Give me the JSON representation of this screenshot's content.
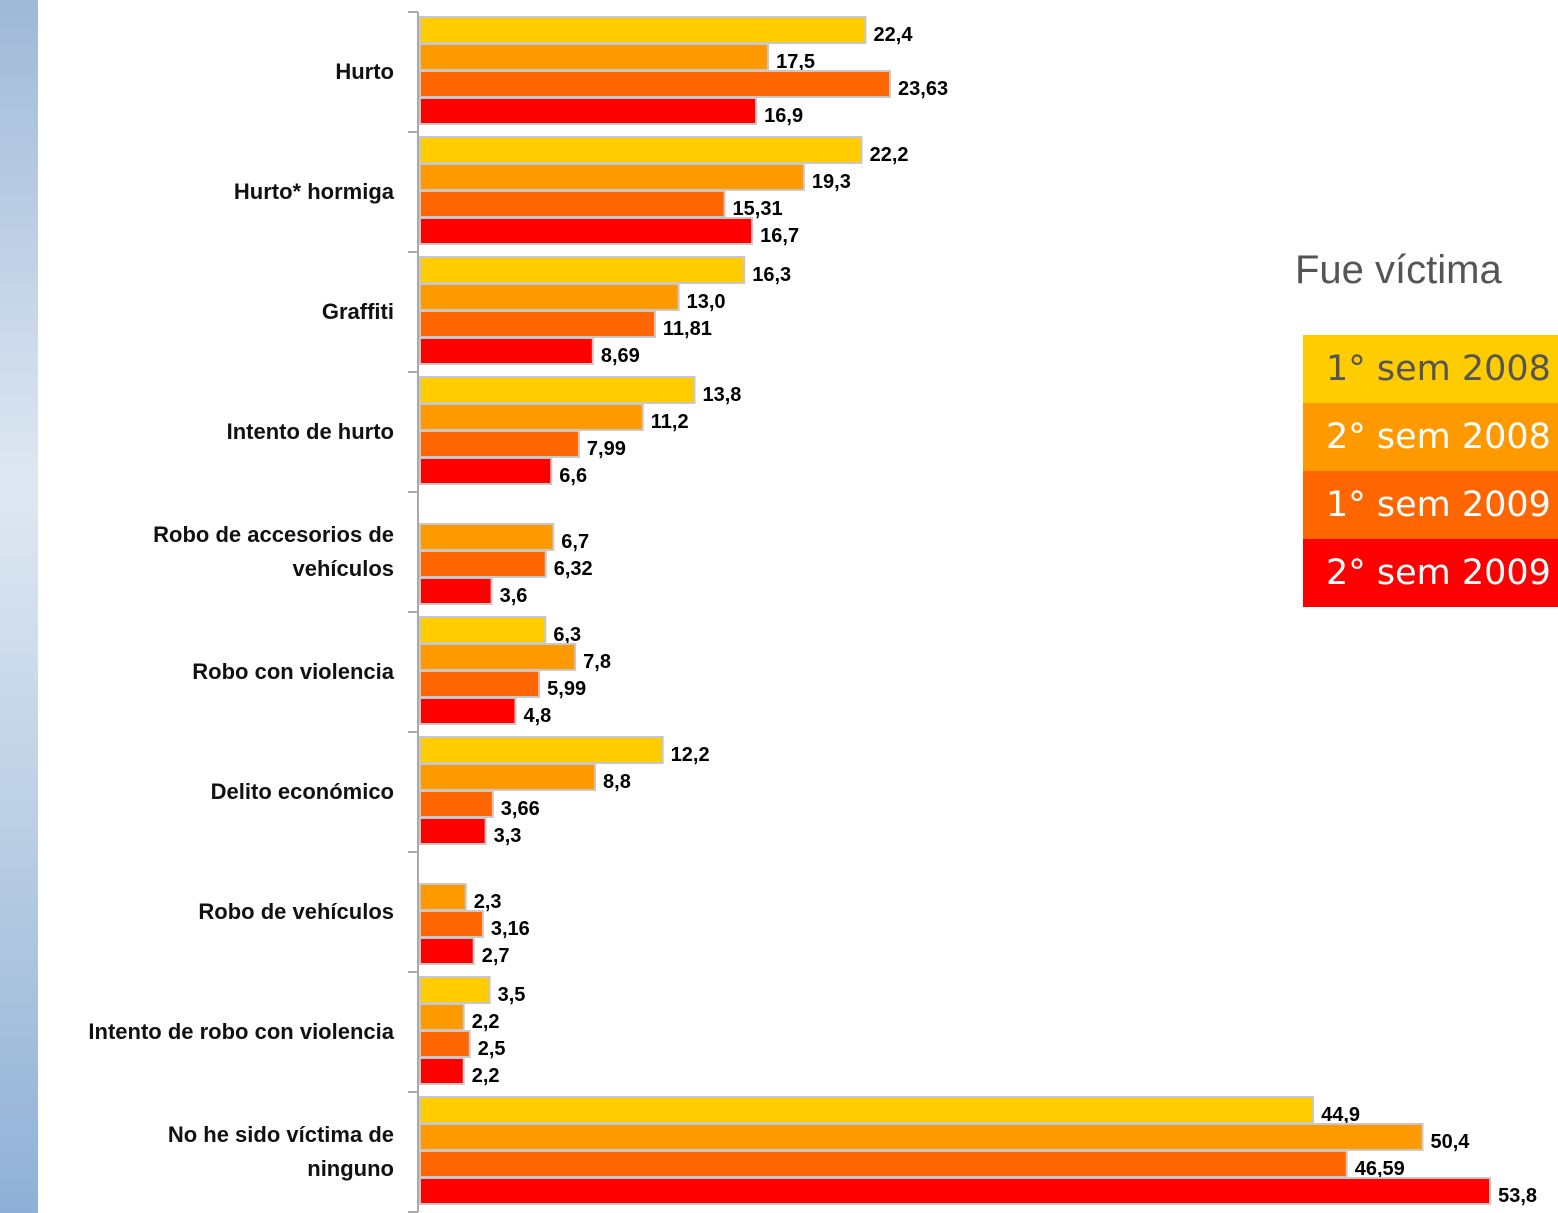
{
  "chart_data": {
    "type": "bar",
    "orientation": "horizontal",
    "categories": [
      "Hurto",
      "Hurto* hormiga",
      "Graffiti",
      "Intento de hurto",
      "Robo de accesorios de\nvehículos",
      "Robo con violencia",
      "Delito económico",
      "Robo de  vehículos",
      "Intento de robo con violencia",
      "No he sido víctima de\nninguno"
    ],
    "series": [
      {
        "name": "1° sem 2008",
        "color": "#ffcc00",
        "text_color": "#555555",
        "values": [
          22.4,
          22.2,
          16.3,
          13.8,
          null,
          6.3,
          12.2,
          null,
          3.5,
          44.9
        ],
        "value_labels": [
          "22,4",
          "22,2",
          "16,3",
          "13,8",
          null,
          "6,3",
          "12,2",
          null,
          "3,5",
          "44,9"
        ]
      },
      {
        "name": "2° sem 2008",
        "color": "#ff9900",
        "text_color": "#ffffff",
        "values": [
          17.5,
          19.3,
          13.0,
          11.2,
          6.7,
          7.8,
          8.8,
          2.3,
          2.2,
          50.4
        ],
        "value_labels": [
          "17,5",
          "19,3",
          "13,0",
          "11,2",
          "6,7",
          "7,8",
          "8,8",
          "2,3",
          "2,2",
          "50,4"
        ]
      },
      {
        "name": "1° sem 2009",
        "color": "#ff6600",
        "text_color": "#ffffff",
        "values": [
          23.63,
          15.31,
          11.81,
          7.99,
          6.32,
          5.99,
          3.66,
          3.16,
          2.5,
          46.59
        ],
        "value_labels": [
          "23,63",
          "15,31",
          "11,81",
          "7,99",
          "6,32",
          "5,99",
          "3,66",
          "3,16",
          "2,5",
          "46,59"
        ]
      },
      {
        "name": "2° sem 2009",
        "color": "#ff0000",
        "text_color": "#ffffff",
        "values": [
          16.9,
          16.7,
          8.69,
          6.6,
          3.6,
          4.8,
          3.3,
          2.7,
          2.2,
          53.8
        ],
        "value_labels": [
          "16,9",
          "16,7",
          "8,69",
          "6,6",
          "3,6",
          "4,8",
          "3,3",
          "2,7",
          "2,2",
          "53,8"
        ]
      }
    ],
    "xlim": [
      0,
      55
    ],
    "legend": {
      "title": "Fue víctima",
      "position": "right"
    }
  }
}
